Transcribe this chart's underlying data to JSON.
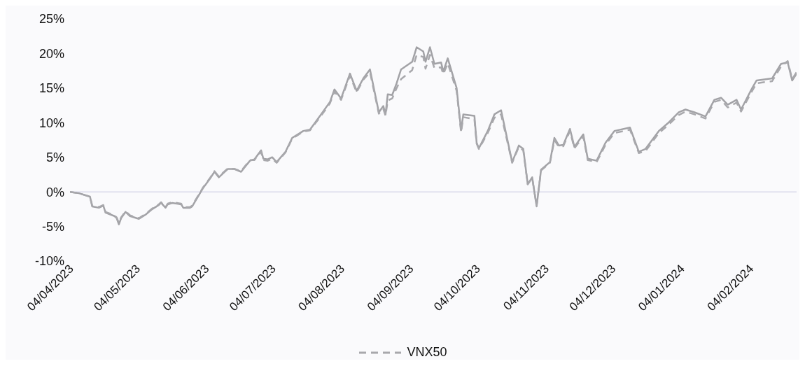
{
  "chart_data": {
    "type": "line",
    "x": [
      "2023-04-04",
      "2023-04-08",
      "2023-04-13",
      "2023-04-14",
      "2023-04-17",
      "2023-04-19",
      "2023-04-20",
      "2023-04-24",
      "2023-04-25",
      "2023-04-26",
      "2023-04-27",
      "2023-04-29",
      "2023-05-01",
      "2023-05-05",
      "2023-05-08",
      "2023-05-11",
      "2023-05-14",
      "2023-05-15",
      "2023-05-17",
      "2023-05-18",
      "2023-05-20",
      "2023-05-24",
      "2023-05-25",
      "2023-05-28",
      "2023-05-29",
      "2023-05-31",
      "2023-06-03",
      "2023-06-06",
      "2023-06-08",
      "2023-06-10",
      "2023-06-12",
      "2023-06-14",
      "2023-06-17",
      "2023-06-20",
      "2023-06-22",
      "2023-06-24",
      "2023-06-26",
      "2023-06-29",
      "2023-06-30",
      "2023-07-02",
      "2023-07-04",
      "2023-07-06",
      "2023-07-10",
      "2023-07-13",
      "2023-07-18",
      "2023-07-21",
      "2023-07-26",
      "2023-07-30",
      "2023-08-01",
      "2023-08-04",
      "2023-08-08",
      "2023-08-11",
      "2023-08-14",
      "2023-08-17",
      "2023-08-21",
      "2023-08-23",
      "2023-08-24",
      "2023-08-25",
      "2023-08-27",
      "2023-08-29",
      "2023-08-31",
      "2023-09-05",
      "2023-09-07",
      "2023-09-10",
      "2023-09-11",
      "2023-09-13",
      "2023-09-15",
      "2023-09-18",
      "2023-09-19",
      "2023-09-21",
      "2023-09-25",
      "2023-09-27",
      "2023-09-28",
      "2023-10-03",
      "2023-10-04",
      "2023-10-05",
      "2023-10-09",
      "2023-10-12",
      "2023-10-15",
      "2023-10-20",
      "2023-10-23",
      "2023-10-25",
      "2023-10-27",
      "2023-10-29",
      "2023-10-31",
      "2023-11-02",
      "2023-11-06",
      "2023-11-08",
      "2023-11-10",
      "2023-11-12",
      "2023-11-15",
      "2023-11-17",
      "2023-11-21",
      "2023-11-23",
      "2023-11-27",
      "2023-12-01",
      "2023-12-05",
      "2023-12-12",
      "2023-12-16",
      "2023-12-19",
      "2023-12-25",
      "2023-12-29",
      "2024-01-03",
      "2024-01-06",
      "2024-01-10",
      "2024-01-15",
      "2024-01-19",
      "2024-01-22",
      "2024-01-25",
      "2024-01-29",
      "2024-01-31",
      "2024-02-05",
      "2024-02-07",
      "2024-02-14",
      "2024-02-18",
      "2024-02-21",
      "2024-02-23",
      "2024-02-25"
    ],
    "series": [
      {
        "color": "#a2a2a6",
        "line_style": "solid",
        "values": [
          0,
          -0.2,
          -0.7,
          -2.1,
          -2.3,
          -2.0,
          -3.0,
          -3.5,
          -3.8,
          -4.7,
          -3.8,
          -2.9,
          -3.5,
          -3.9,
          -3.3,
          -2.5,
          -1.9,
          -1.6,
          -2.3,
          -1.8,
          -1.6,
          -1.8,
          -2.3,
          -2.3,
          -2.1,
          -1.0,
          0.6,
          1.9,
          2.9,
          2.1,
          2.7,
          3.3,
          3.3,
          2.9,
          3.7,
          4.5,
          4.7,
          6.0,
          4.8,
          4.7,
          5.0,
          4.3,
          5.8,
          7.8,
          8.8,
          9.0,
          11.2,
          13.0,
          14.8,
          13.5,
          17.1,
          14.6,
          16.4,
          17.7,
          11.5,
          12.4,
          11.2,
          14.1,
          14.0,
          15.7,
          17.7,
          18.8,
          20.9,
          20.3,
          18.8,
          20.9,
          18.5,
          18.7,
          17.4,
          19.3,
          15.0,
          8.9,
          11.2,
          11.0,
          7.1,
          6.3,
          8.8,
          11.2,
          11.8,
          4.3,
          6.7,
          6.2,
          1.1,
          2.1,
          -2.1,
          3.2,
          4.3,
          7.8,
          6.7,
          6.8,
          9.1,
          6.5,
          8.3,
          4.8,
          4.5,
          7.1,
          8.8,
          9.3,
          5.8,
          6.2,
          8.8,
          9.9,
          11.5,
          11.9,
          11.5,
          10.9,
          13.3,
          13.6,
          12.6,
          13.3,
          11.9,
          15.0,
          16.1,
          16.4,
          18.5,
          18.7,
          16.1,
          17.1
        ]
      },
      {
        "name": "VNX50",
        "color": "#a8a8ac",
        "line_style": "dashed",
        "values": [
          0,
          -0.2,
          -0.7,
          -2.0,
          -2.2,
          -1.9,
          -2.9,
          -3.4,
          -3.7,
          -4.5,
          -3.7,
          -2.8,
          -3.4,
          -3.8,
          -3.2,
          -2.4,
          -1.8,
          -1.5,
          -2.2,
          -1.7,
          -1.5,
          -1.7,
          -2.2,
          -2.2,
          -2.0,
          -0.9,
          0.7,
          2.0,
          3.0,
          2.2,
          2.8,
          3.4,
          3.3,
          3.0,
          3.8,
          4.6,
          4.6,
          5.8,
          4.6,
          4.5,
          4.8,
          4.2,
          5.7,
          7.7,
          8.7,
          8.9,
          11.0,
          12.8,
          14.5,
          13.3,
          16.8,
          14.4,
          16.2,
          17.3,
          11.3,
          12.0,
          11.0,
          13.2,
          13.5,
          15.0,
          16.3,
          17.6,
          19.8,
          19.5,
          17.8,
          19.8,
          17.9,
          18.0,
          17.0,
          18.6,
          14.6,
          8.6,
          10.8,
          10.5,
          7.0,
          6.2,
          8.5,
          10.7,
          11.2,
          4.2,
          6.5,
          6.0,
          1.1,
          2.0,
          -2.0,
          3.1,
          4.2,
          7.5,
          6.5,
          6.6,
          8.8,
          6.3,
          8.0,
          4.6,
          4.3,
          6.8,
          8.5,
          9.0,
          5.6,
          5.9,
          8.5,
          9.6,
          11.1,
          11.6,
          11.2,
          10.6,
          13.0,
          13.3,
          12.2,
          12.9,
          11.6,
          14.6,
          15.7,
          16.0,
          18.1,
          18.9,
          16.3,
          17.3
        ]
      }
    ],
    "xlim": [
      "2023-04-04",
      "2024-02-25"
    ],
    "xticks": [
      {
        "value": "2023-04-04",
        "label": "04/04/2023"
      },
      {
        "value": "2023-05-04",
        "label": "04/05/2023"
      },
      {
        "value": "2023-06-04",
        "label": "04/06/2023"
      },
      {
        "value": "2023-07-04",
        "label": "04/07/2023"
      },
      {
        "value": "2023-08-04",
        "label": "04/08/2023"
      },
      {
        "value": "2023-09-04",
        "label": "04/09/2023"
      },
      {
        "value": "2023-10-04",
        "label": "04/10/2023"
      },
      {
        "value": "2023-11-04",
        "label": "04/11/2023"
      },
      {
        "value": "2023-12-04",
        "label": "04/12/2023"
      },
      {
        "value": "2024-01-04",
        "label": "04/01/2024"
      },
      {
        "value": "2024-02-04",
        "label": "04/02/2024"
      }
    ],
    "ylim": [
      -10,
      25
    ],
    "yticks": [
      {
        "value": -10,
        "label": "-10%"
      },
      {
        "value": -5,
        "label": "-5%"
      },
      {
        "value": 0,
        "label": "0%"
      },
      {
        "value": 5,
        "label": "5%"
      },
      {
        "value": 10,
        "label": "10%"
      },
      {
        "value": 15,
        "label": "15%"
      },
      {
        "value": 20,
        "label": "20%"
      },
      {
        "value": 25,
        "label": "25%"
      }
    ],
    "ref_lines": [
      {
        "axis": "y",
        "value": 0,
        "color": "#d8d8ea"
      }
    ],
    "grid": false,
    "legend": "bottom"
  }
}
